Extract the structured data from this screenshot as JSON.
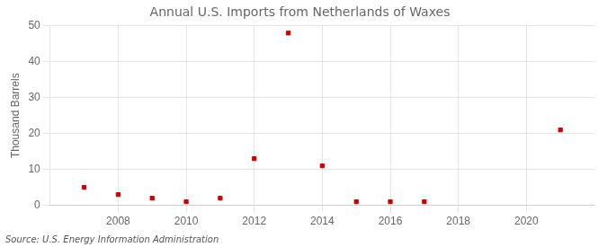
{
  "chart_data": {
    "type": "scatter",
    "title": "Annual U.S. Imports from Netherlands of Waxes",
    "ylabel": "Thousand Barrels",
    "annotation": "Source: U.S. Energy Information Administration",
    "x": [
      2007,
      2008,
      2009,
      2010,
      2011,
      2012,
      2013,
      2014,
      2015,
      2016,
      2017,
      2021
    ],
    "values": [
      5,
      3,
      2,
      1,
      2,
      13,
      48,
      11,
      1,
      1,
      1,
      21
    ],
    "color": "#cc0000",
    "marker": "square",
    "xlim": [
      2006,
      2022
    ],
    "xticks": [
      2008,
      2010,
      2012,
      2014,
      2016,
      2018,
      2020
    ],
    "ylim": [
      0,
      50
    ],
    "yticks": [
      0,
      10,
      20,
      30,
      40,
      50
    ],
    "grid": true
  }
}
